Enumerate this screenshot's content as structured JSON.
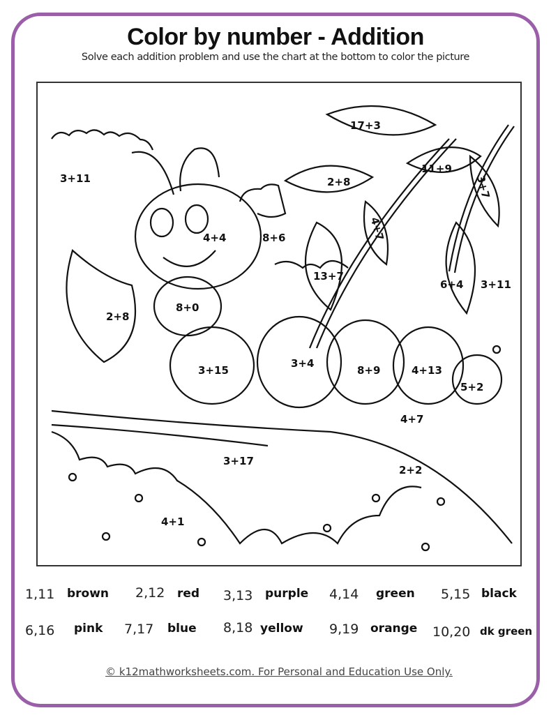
{
  "title": "Color by number - Addition",
  "subtitle": "Solve each addition problem and use the chart at the bottom to color the picture",
  "problems": [
    "17+3",
    "3+11",
    "2+8",
    "11+9",
    "3+7",
    "4+4",
    "8+6",
    "4+7",
    "13+7",
    "6+4",
    "3+11",
    "2+8",
    "8+0",
    "3+15",
    "3+4",
    "8+9",
    "4+13",
    "5+2",
    "4+7",
    "3+17",
    "2+2",
    "4+1"
  ],
  "key": [
    {
      "numbers": "1,11",
      "color": "brown"
    },
    {
      "numbers": "2,12",
      "color": "red"
    },
    {
      "numbers": "3,13",
      "color": "purple"
    },
    {
      "numbers": "4,14",
      "color": "green"
    },
    {
      "numbers": "5,15",
      "color": "black"
    },
    {
      "numbers": "6,16",
      "color": "pink"
    },
    {
      "numbers": "7,17",
      "color": "blue"
    },
    {
      "numbers": "8,18",
      "color": "yellow"
    },
    {
      "numbers": "9,19",
      "color": "orange"
    },
    {
      "numbers": "10,20",
      "color": "dk green"
    }
  ],
  "footer": "© k12mathworksheets.com. For Personal and Education Use Only.",
  "colors": {
    "border": "#9a5fa8"
  }
}
